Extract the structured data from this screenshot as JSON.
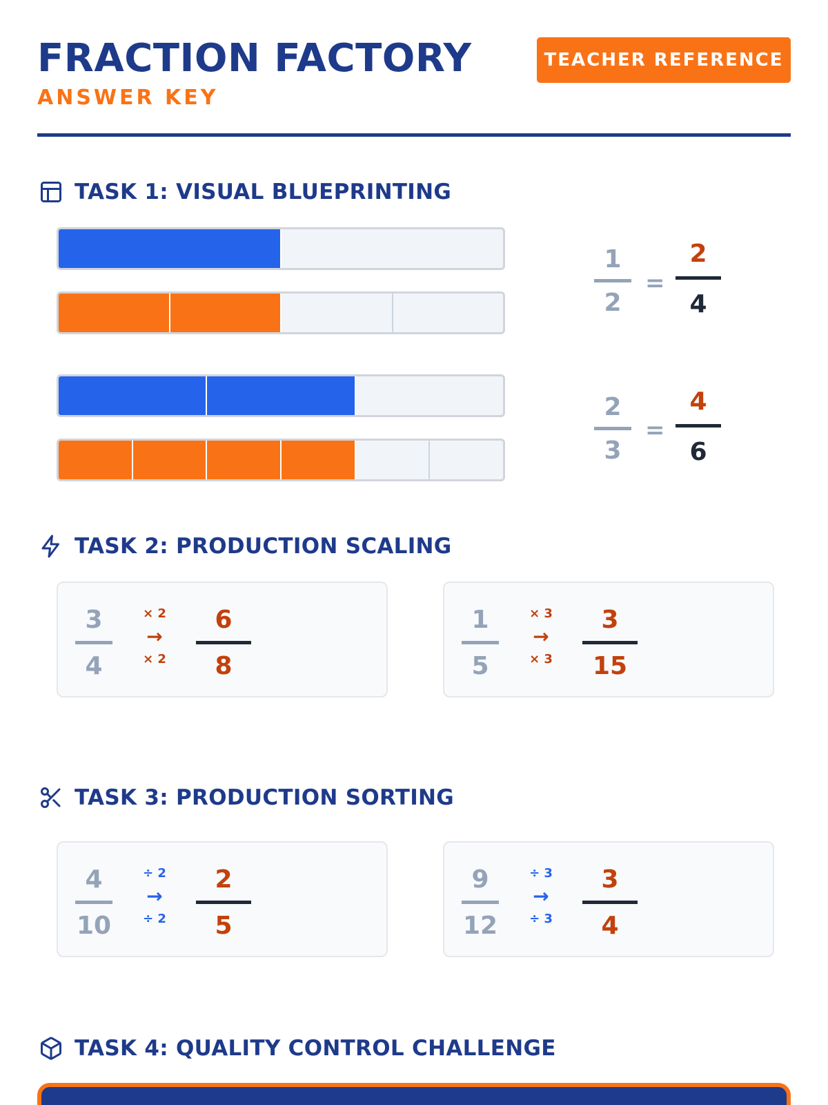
{
  "header": {
    "title": "FRACTION FACTORY",
    "subtitle": "ANSWER KEY",
    "teacher_button": "TEACHER REFERENCE"
  },
  "task1": {
    "label": "TASK 1: VISUAL BLUEPRINTING",
    "icon": "layout-icon",
    "problems": [
      {
        "top": {
          "num": "1",
          "den": "2"
        },
        "eq": "=",
        "answer": {
          "num": "2",
          "den": "4"
        },
        "blue_bar": {
          "parts": 2,
          "filled": 1
        },
        "orange_bar": {
          "parts": 4,
          "filled": 2
        }
      },
      {
        "top": {
          "num": "2",
          "den": "3"
        },
        "eq": "=",
        "answer": {
          "num": "4",
          "den": "6"
        },
        "blue_bar": {
          "parts": 3,
          "filled": 2
        },
        "orange_bar": {
          "parts": 6,
          "filled": 4
        }
      }
    ]
  },
  "task2": {
    "label": "TASK 2: PRODUCTION SCALING",
    "icon": "lightning-icon",
    "cards": [
      {
        "num": "3",
        "den": "4",
        "op_top": "× 2",
        "arrow": "→",
        "op_bottom": "× 2",
        "ans_num": "6",
        "ans_den": "8"
      },
      {
        "num": "1",
        "den": "5",
        "op_top": "× 3",
        "arrow": "→",
        "op_bottom": "× 3",
        "ans_num": "3",
        "ans_den": "15"
      }
    ]
  },
  "task3": {
    "label": "TASK 3: PRODUCTION SORTING",
    "icon": "scissors-icon",
    "cards": [
      {
        "num": "4",
        "den": "10",
        "op_top": "÷ 2",
        "arrow": "→",
        "op_bottom": "÷ 2",
        "ans_num": "2",
        "ans_den": "5"
      },
      {
        "num": "9",
        "den": "12",
        "op_top": "÷ 3",
        "arrow": "→",
        "op_bottom": "÷ 3",
        "ans_num": "3",
        "ans_den": "4"
      }
    ]
  },
  "task4": {
    "label": "TASK 4: QUALITY CONTROL CHALLENGE",
    "icon": "box-icon"
  },
  "colors": {
    "navy": "#1e3a8a",
    "orange": "#f97316",
    "blue": "#2563eb",
    "answer_orange": "#c2410c",
    "grey": "#94a3b8"
  }
}
